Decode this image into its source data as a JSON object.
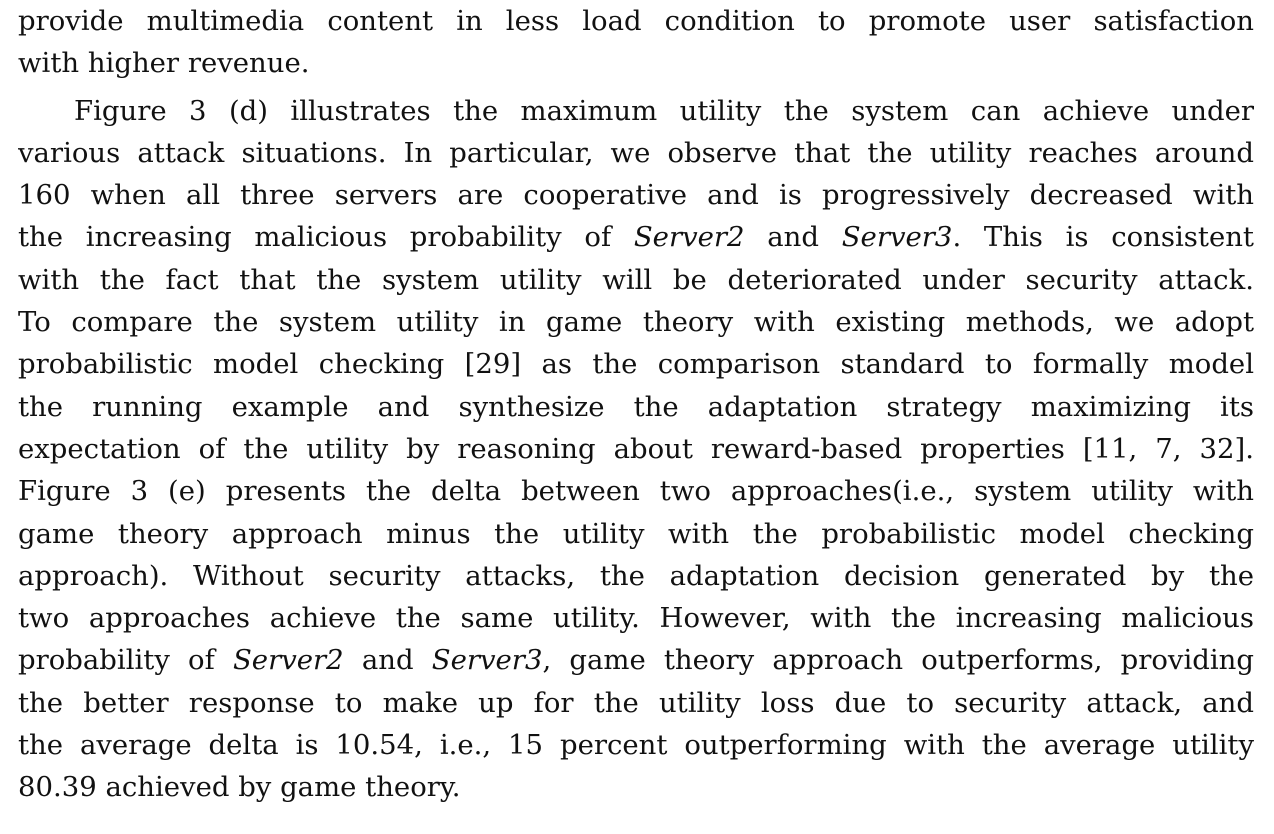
{
  "paragraph1": {
    "lines": [
      "provide multimedia content in less load condition to promote user satisfaction",
      "with higher revenue."
    ]
  },
  "paragraph2": {
    "l1": "Figure 3 (d) illustrates the maximum utility the system can achieve under",
    "l2": "various attack situations. In particular, we observe that the utility reaches around",
    "l3": "160 when all three servers are cooperative and is progressively decreased with",
    "l4_a": "the increasing malicious probability of ",
    "l4_b": "Server2",
    "l4_c": " and ",
    "l4_d": "Server3",
    "l4_e": ". This is consistent",
    "l5": "with the fact that the system utility will be deteriorated under security attack.",
    "l6": "To compare the system utility in game theory with existing methods, we adopt",
    "l7": "probabilistic model checking [29] as the comparison standard to formally model",
    "l8": "the running example and synthesize the adaptation strategy maximizing its",
    "l9": "expectation of the utility by reasoning about reward-based properties  [11, 7, 32].",
    "l10": "Figure 3 (e) presents the delta between two approaches(i.e., system utility with",
    "l11": "game theory approach minus the utility with the probabilistic model checking",
    "l12": "approach). Without security attacks, the adaptation decision generated by the",
    "l13": "two approaches achieve the same utility. However, with the increasing malicious",
    "l14_a": "probability of ",
    "l14_b": "Server2",
    "l14_c": " and ",
    "l14_d": "Server3",
    "l14_e": ", game theory approach outperforms, providing",
    "l15": "the better response to make up for the utility loss due to security attack, and",
    "l16": "the average delta is 10.54, i.e., 15 percent outperforming with the average utility",
    "l17": "80.39 achieved by game theory."
  }
}
